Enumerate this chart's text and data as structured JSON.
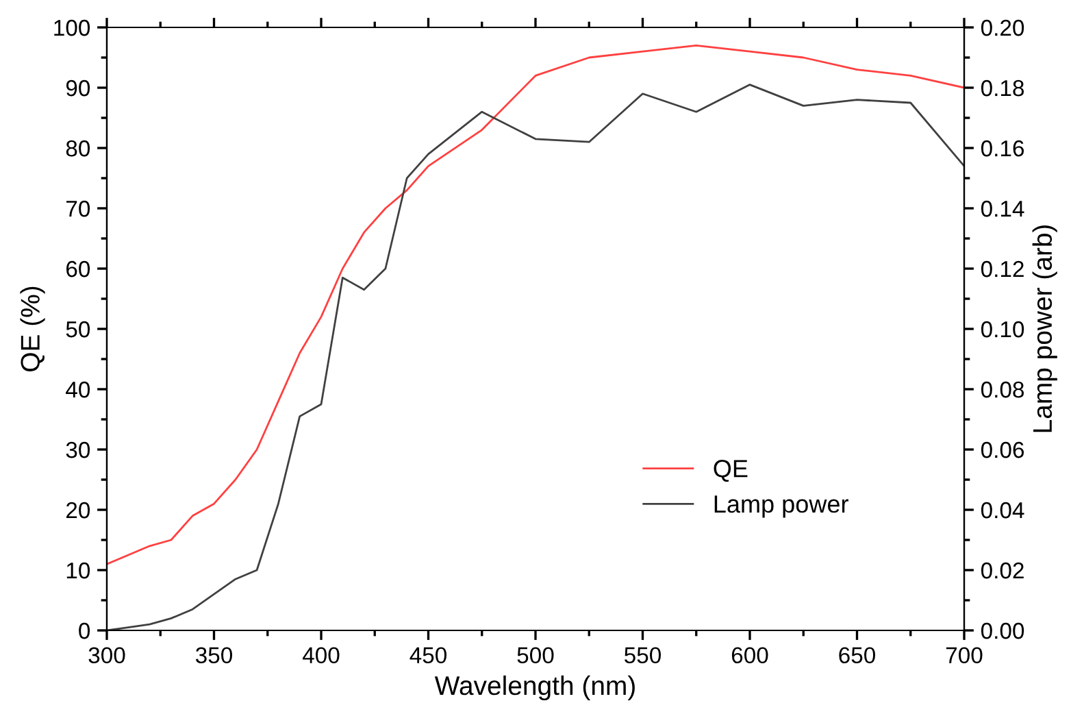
{
  "chart_data": {
    "type": "line",
    "xlabel": "Wavelength (nm)",
    "ylabel": "QE (%)",
    "y2label": "Lamp power (arb)",
    "x": [
      300,
      310,
      320,
      330,
      340,
      350,
      360,
      370,
      380,
      390,
      400,
      410,
      420,
      430,
      440,
      450,
      475,
      500,
      525,
      550,
      575,
      600,
      625,
      650,
      675,
      700
    ],
    "series": [
      {
        "name": "QE",
        "color": "#ff4040",
        "values": [
          11,
          12.5,
          14,
          15,
          19,
          21,
          25,
          30,
          38,
          46,
          52,
          60,
          66,
          70,
          73,
          77,
          83,
          92,
          95,
          96,
          97,
          96,
          95,
          93,
          92,
          90
        ]
      },
      {
        "name": "Lamp power",
        "color": "#404040",
        "axis": "y2",
        "values": [
          0,
          0.001,
          0.002,
          0.004,
          0.007,
          0.012,
          0.017,
          0.02,
          0.042,
          0.071,
          0.075,
          0.117,
          0.113,
          0.12,
          0.15,
          0.158,
          0.172,
          0.163,
          0.162,
          0.178,
          0.172,
          0.181,
          0.174,
          0.176,
          0.175,
          0.154
        ]
      }
    ],
    "xlim": [
      300,
      700
    ],
    "xticks": [
      300,
      350,
      400,
      450,
      500,
      550,
      600,
      650,
      700
    ],
    "ylim": [
      0,
      100
    ],
    "yticks": [
      0,
      10,
      20,
      30,
      40,
      50,
      60,
      70,
      80,
      90,
      100
    ],
    "y2lim": [
      0,
      0.2
    ],
    "y2ticks": [
      {
        "value": 0,
        "label": "0.00"
      },
      {
        "value": 0.02,
        "label": "0.02"
      },
      {
        "value": 0.04,
        "label": "0.04"
      },
      {
        "value": 0.06,
        "label": "0.06"
      },
      {
        "value": 0.08,
        "label": "0.08"
      },
      {
        "value": 0.1,
        "label": "0.10"
      },
      {
        "value": 0.12,
        "label": "0.12"
      },
      {
        "value": 0.14,
        "label": "0.14"
      },
      {
        "value": 0.16,
        "label": "0.16"
      },
      {
        "value": 0.18,
        "label": "0.18"
      },
      {
        "value": 0.2,
        "label": "0.20"
      }
    ],
    "legend": "bottom right",
    "grid": false
  }
}
